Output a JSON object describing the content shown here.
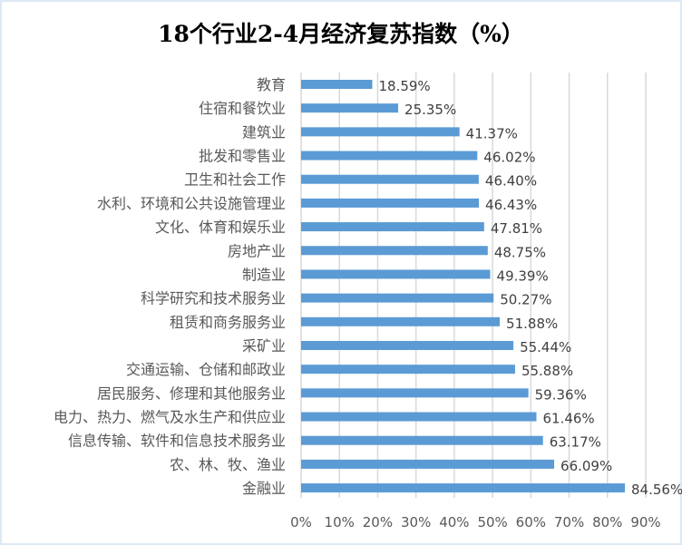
{
  "chart_data": {
    "type": "bar",
    "orientation": "horizontal",
    "title": "18个行业2-4月经济复苏指数（%）",
    "categories": [
      "教育",
      "住宿和餐饮业",
      "建筑业",
      "批发和零售业",
      "卫生和社会工作",
      "水利、环境和公共设施管理业",
      "文化、体育和娱乐业",
      "房地产业",
      "制造业",
      "科学研究和技术服务业",
      "租赁和商务服务业",
      "采矿业",
      "交通运输、仓储和邮政业",
      "居民服务、修理和其他服务业",
      "电力、热力、燃气及水生产和供应业",
      "信息传输、软件和信息技术服务业",
      "农、林、牧、渔业",
      "金融业"
    ],
    "values": [
      18.59,
      25.35,
      41.37,
      46.02,
      46.4,
      46.43,
      47.81,
      48.75,
      49.39,
      50.27,
      51.88,
      55.44,
      55.88,
      59.36,
      61.46,
      63.17,
      66.09,
      84.56
    ],
    "labels": [
      "18.59%",
      "25.35%",
      "41.37%",
      "46.02%",
      "46.40%",
      "46.43%",
      "47.81%",
      "48.75%",
      "49.39%",
      "50.27%",
      "51.88%",
      "55.44%",
      "55.88%",
      "59.36%",
      "61.46%",
      "63.17%",
      "66.09%",
      "84.56%"
    ],
    "xticks": [
      "0%",
      "10%",
      "20%",
      "30%",
      "40%",
      "50%",
      "60%",
      "70%",
      "80%",
      "90%"
    ],
    "xlim": [
      0,
      90
    ],
    "xlabel": "",
    "ylabel": "",
    "grid": true,
    "legend": "none",
    "bar_color": "#5b9bd5"
  }
}
